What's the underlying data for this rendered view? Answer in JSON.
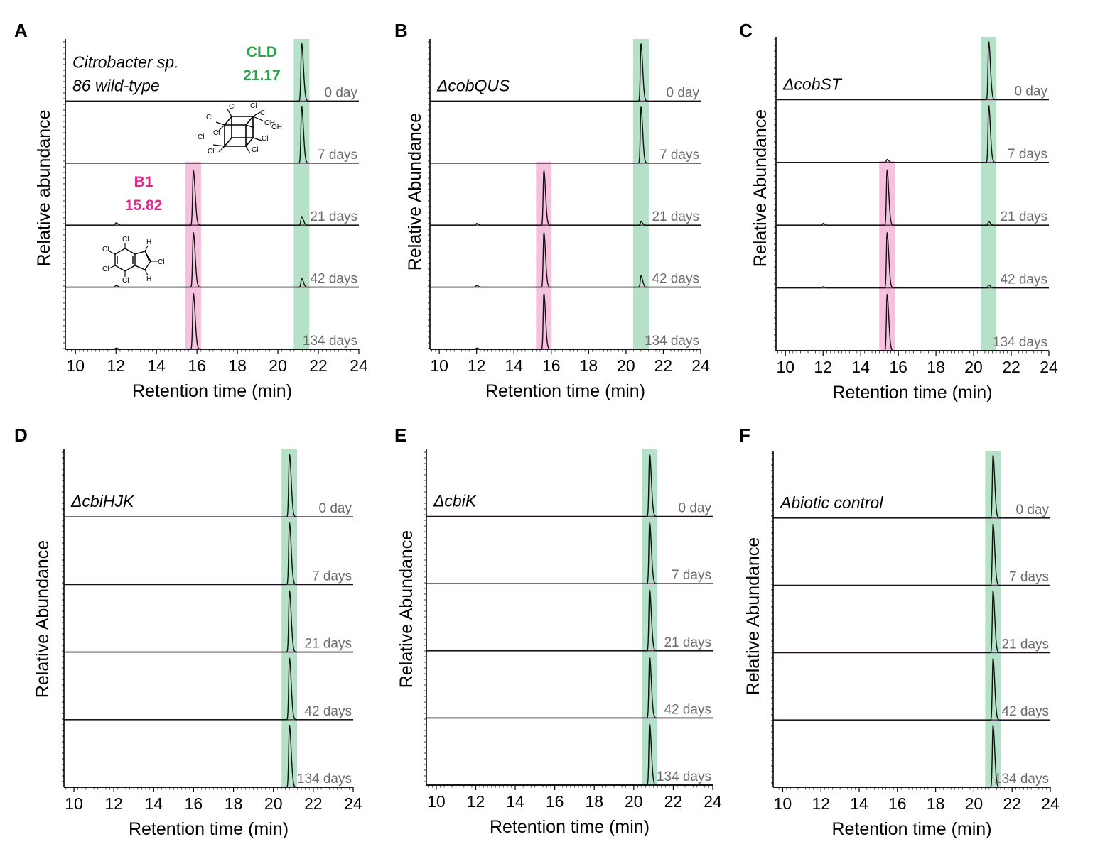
{
  "figure": {
    "x_axis_title": "Retention time (min)",
    "colors": {
      "cld_band": "#a8dcc0",
      "b1_band": "#f3b6d6",
      "baseline": "#6b3a6b",
      "trace": "#111111",
      "cld_label": "#2ca24a",
      "b1_label": "#e0288c",
      "day_label": "#6b6b6b"
    }
  },
  "chart_data": [
    {
      "panel": "A",
      "type": "line",
      "title": "Citrobacter sp. 86 wild-type",
      "sample_lines": [
        "Citrobacter sp.",
        "86 wild-type"
      ],
      "ylabel": "Relative abundance",
      "xlabel": "Retention time (min)",
      "xlim": [
        9.5,
        24
      ],
      "x_ticks": [
        "10",
        "12",
        "14",
        "16",
        "18",
        "20",
        "22",
        "24"
      ],
      "peaks": [
        {
          "name": "CLD",
          "rt": "21.17",
          "color": "green"
        },
        {
          "name": "B1",
          "rt": "15.82",
          "color": "pink"
        }
      ],
      "structures": [
        "chlordecone structure",
        "B1 structure"
      ],
      "traces": [
        {
          "day": "0 day",
          "cld": 1.0,
          "b1": 0.0,
          "minor": 0.0
        },
        {
          "day": "7 days",
          "cld": 0.98,
          "b1": 0.0,
          "minor": 0.0
        },
        {
          "day": "21 days",
          "cld": 0.15,
          "b1": 0.95,
          "minor": 0.04
        },
        {
          "day": "42 days",
          "cld": 0.15,
          "b1": 0.95,
          "minor": 0.03
        },
        {
          "day": "134 days",
          "cld": 0.0,
          "b1": 0.97,
          "minor": 0.02
        }
      ]
    },
    {
      "panel": "B",
      "type": "line",
      "title": "ΔcobQUS",
      "sample_lines": [
        "ΔcobQUS"
      ],
      "ylabel": "Relative Abundance",
      "xlabel": "Retention time (min)",
      "xlim": [
        9.5,
        24
      ],
      "x_ticks": [
        "10",
        "12",
        "14",
        "16",
        "18",
        "20",
        "22",
        "24"
      ],
      "peaks": [
        {
          "name": "CLD",
          "rt": "20.8",
          "color": "green"
        },
        {
          "name": "B1",
          "rt": "15.6",
          "color": "pink"
        }
      ],
      "traces": [
        {
          "day": "0 day",
          "cld": 1.0,
          "b1": 0.0,
          "minor": 0.0
        },
        {
          "day": "7 days",
          "cld": 0.98,
          "b1": 0.0,
          "minor": 0.0
        },
        {
          "day": "21 days",
          "cld": 0.06,
          "b1": 0.95,
          "minor": 0.03
        },
        {
          "day": "42 days",
          "cld": 0.2,
          "b1": 0.95,
          "minor": 0.03
        },
        {
          "day": "134 days",
          "cld": 0.0,
          "b1": 0.97,
          "minor": 0.02
        }
      ]
    },
    {
      "panel": "C",
      "type": "line",
      "title": "ΔcobST",
      "sample_lines": [
        "ΔcobST"
      ],
      "ylabel": "Relative Abundance",
      "xlabel": "Retention time (min)",
      "xlim": [
        9.5,
        24
      ],
      "x_ticks": [
        "10",
        "12",
        "14",
        "16",
        "18",
        "20",
        "22",
        "24"
      ],
      "peaks": [
        {
          "name": "CLD",
          "rt": "20.8",
          "color": "green"
        },
        {
          "name": "B1",
          "rt": "15.4",
          "color": "pink"
        }
      ],
      "traces": [
        {
          "day": "0 day",
          "cld": 1.0,
          "b1": 0.0,
          "minor": 0.0
        },
        {
          "day": "7 days",
          "cld": 0.98,
          "b1": 0.05,
          "minor": 0.0
        },
        {
          "day": "21 days",
          "cld": 0.06,
          "b1": 0.95,
          "minor": 0.03
        },
        {
          "day": "42 days",
          "cld": 0.05,
          "b1": 0.95,
          "minor": 0.02
        },
        {
          "day": "134 days",
          "cld": 0.0,
          "b1": 0.97,
          "minor": 0.0
        }
      ]
    },
    {
      "panel": "D",
      "type": "line",
      "title": "ΔcbiHJK",
      "sample_lines": [
        "ΔcbiHJK"
      ],
      "ylabel": "Relative Abundance",
      "xlabel": "Retention time (min)",
      "xlim": [
        9.5,
        24
      ],
      "x_ticks": [
        "10",
        "12",
        "14",
        "16",
        "18",
        "20",
        "22",
        "24"
      ],
      "peaks": [
        {
          "name": "CLD",
          "rt": "20.8",
          "color": "green"
        }
      ],
      "traces": [
        {
          "day": "0 day",
          "cld": 1.0,
          "b1": 0.0,
          "minor": 0.0
        },
        {
          "day": "7 days",
          "cld": 0.98,
          "b1": 0.0,
          "minor": 0.0
        },
        {
          "day": "21 days",
          "cld": 0.98,
          "b1": 0.0,
          "minor": 0.0
        },
        {
          "day": "42 days",
          "cld": 0.98,
          "b1": 0.0,
          "minor": 0.0
        },
        {
          "day": "134 days",
          "cld": 0.98,
          "b1": 0.0,
          "minor": 0.0
        }
      ]
    },
    {
      "panel": "E",
      "type": "line",
      "title": "ΔcbiK",
      "sample_lines": [
        "ΔcbiK"
      ],
      "ylabel": "Relative Abundance",
      "xlabel": "Retention time (min)",
      "xlim": [
        9.5,
        24
      ],
      "x_ticks": [
        "10",
        "12",
        "14",
        "16",
        "18",
        "20",
        "22",
        "24"
      ],
      "peaks": [
        {
          "name": "CLD",
          "rt": "20.8",
          "color": "green"
        }
      ],
      "traces": [
        {
          "day": "0 day",
          "cld": 1.0,
          "b1": 0.0,
          "minor": 0.0
        },
        {
          "day": "7 days",
          "cld": 0.98,
          "b1": 0.0,
          "minor": 0.0
        },
        {
          "day": "21 days",
          "cld": 0.98,
          "b1": 0.0,
          "minor": 0.0
        },
        {
          "day": "42 days",
          "cld": 0.98,
          "b1": 0.0,
          "minor": 0.0
        },
        {
          "day": "134 days",
          "cld": 0.98,
          "b1": 0.0,
          "minor": 0.0
        }
      ]
    },
    {
      "panel": "F",
      "type": "line",
      "title": "Abiotic control",
      "sample_lines": [
        "Abiotic control"
      ],
      "ylabel": "Relative Abundance",
      "xlabel": "Retention time (min)",
      "xlim": [
        9.5,
        24
      ],
      "x_ticks": [
        "10",
        "12",
        "14",
        "16",
        "18",
        "20",
        "22",
        "24"
      ],
      "peaks": [
        {
          "name": "CLD",
          "rt": "21.0",
          "color": "green"
        }
      ],
      "traces": [
        {
          "day": "0 day",
          "cld": 1.0,
          "b1": 0.0,
          "minor": 0.0
        },
        {
          "day": "7 days",
          "cld": 0.98,
          "b1": 0.0,
          "minor": 0.0
        },
        {
          "day": "21 days",
          "cld": 0.98,
          "b1": 0.0,
          "minor": 0.0
        },
        {
          "day": "42 days",
          "cld": 0.98,
          "b1": 0.0,
          "minor": 0.0
        },
        {
          "day": "134 days",
          "cld": 0.98,
          "b1": 0.0,
          "minor": 0.0
        }
      ]
    }
  ]
}
